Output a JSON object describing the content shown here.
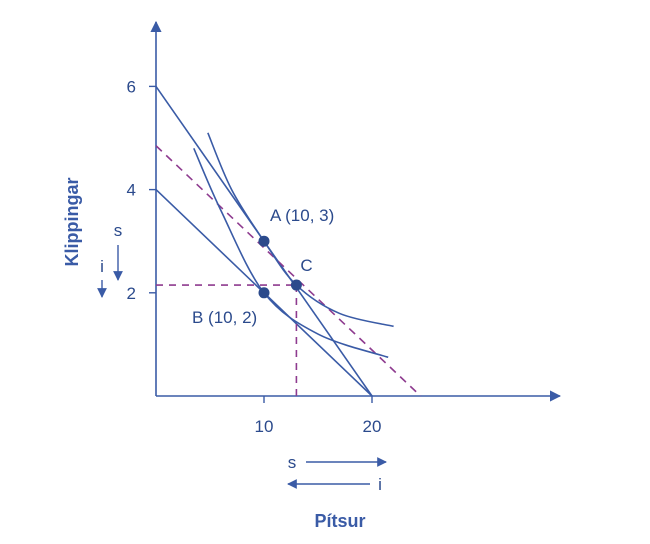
{
  "colors": {
    "axis": "#3a5ba6",
    "curve": "#3a5ba6",
    "text": "#2b4a8c",
    "dashed": "#8e3b8f"
  },
  "chart_data": {
    "type": "line",
    "xlabel": "Pítsur",
    "ylabel": "Klippingar",
    "x_ticks": [
      10,
      20
    ],
    "y_ticks": [
      2,
      4,
      6
    ],
    "xlim": [
      0,
      25
    ],
    "ylim": [
      0,
      7
    ],
    "grid": false,
    "budget_lines": [
      {
        "points": [
          [
            0,
            6
          ],
          [
            20,
            0
          ]
        ]
      },
      {
        "points": [
          [
            0,
            4
          ],
          [
            20,
            0
          ]
        ]
      },
      {
        "points": [
          [
            0,
            4.85
          ],
          [
            24.5,
            0
          ]
        ],
        "style": "dashed"
      }
    ],
    "indifference_curves": [
      {
        "points": [
          [
            4.8,
            5.1
          ],
          [
            7,
            4
          ],
          [
            10,
            3
          ],
          [
            13,
            2.15
          ],
          [
            17,
            1.6
          ],
          [
            22,
            1.35
          ]
        ]
      },
      {
        "points": [
          [
            3.5,
            4.8
          ],
          [
            6,
            3.6
          ],
          [
            10,
            2
          ],
          [
            15,
            1.2
          ],
          [
            21.5,
            0.75
          ]
        ]
      }
    ],
    "points": [
      {
        "label": "A (10, 3)",
        "x": 10,
        "y": 3
      },
      {
        "label": "B (10, 2)",
        "x": 10,
        "y": 2
      },
      {
        "label": "C",
        "x": 13,
        "y": 2.15
      }
    ],
    "guide_lines": [
      {
        "from": [
          0,
          2.15
        ],
        "to": [
          13,
          2.15
        ]
      },
      {
        "from": [
          13,
          2.15
        ],
        "to": [
          13,
          0
        ]
      }
    ],
    "effects": {
      "y_substitution": "s",
      "y_income": "i",
      "x_substitution": "s",
      "x_income": "i"
    }
  }
}
